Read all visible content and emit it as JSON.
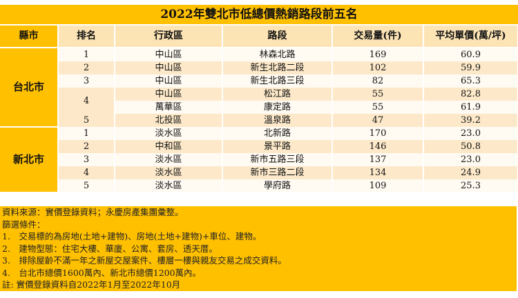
{
  "title": "2022年雙北市低總價熱銷路段前五名",
  "headers": [
    "縣市",
    "排名",
    "行政區",
    "路段",
    "交易量(件)",
    "平均單價(萬/坪)"
  ],
  "taipei": {
    "city": "台北市",
    "rows": [
      {
        "rank": "1",
        "district": "中山區",
        "road": "林森北路",
        "volume": "169",
        "price": "60.9"
      },
      {
        "rank": "2",
        "district": "中山區",
        "road": "新生北路二段",
        "volume": "102",
        "price": "59.9"
      },
      {
        "rank": "3",
        "district": "中山區",
        "road": "新生北路三段",
        "volume": "82",
        "price": "65.3"
      },
      {
        "rank": "4",
        "district": "中山區",
        "road": "松江路",
        "volume": "55",
        "price": "82.8"
      },
      {
        "district": "萬華區",
        "road": "康定路",
        "volume": "55",
        "price": "61.9"
      },
      {
        "rank": "5",
        "district": "北投區",
        "road": "溫泉路",
        "volume": "47",
        "price": "39.2"
      }
    ]
  },
  "newtaipei": {
    "city": "新北市",
    "rows": [
      {
        "rank": "1",
        "district": "淡水區",
        "road": "北新路",
        "volume": "170",
        "price": "23.0"
      },
      {
        "rank": "2",
        "district": "中和區",
        "road": "景平路",
        "volume": "146",
        "price": "50.8"
      },
      {
        "rank": "3",
        "district": "淡水區",
        "road": "新市五路三段",
        "volume": "137",
        "price": "23.0"
      },
      {
        "rank": "4",
        "district": "淡水區",
        "road": "新市三路二段",
        "volume": "134",
        "price": "24.9"
      },
      {
        "rank": "5",
        "district": "淡水區",
        "road": "學府路",
        "volume": "109",
        "price": "25.3"
      }
    ]
  },
  "footer": [
    "資料來源：實價登錄資料；永慶房產集團彙整。",
    "篩選條件：",
    "1.　交易標的為房地(土地+建物)、房地(土地+建物)+車位、建物。",
    "2.　建物型態：住宅大樓、華廈、公寓、套房、透天厝。",
    "3.　排除屋齡不滿一年之新屋交屋案件、樓層一樓與親友交易之成交資料。",
    "4.　台北市總價1600萬內、新北市總價1200萬內。",
    "註: 實價登錄資料自2022年1月至2022年10月"
  ]
}
